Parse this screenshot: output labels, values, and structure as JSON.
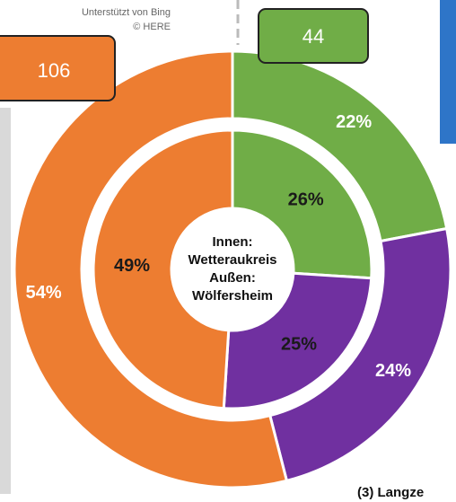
{
  "chart_data": {
    "type": "donut",
    "colors": [
      "#70ad47",
      "#7030a0",
      "#ed7d31"
    ],
    "rings": [
      {
        "values": [
          26,
          25,
          49
        ],
        "value_labels": [
          "26%",
          "25%",
          "49%"
        ]
      },
      {
        "values": [
          22,
          24,
          54
        ],
        "value_labels": [
          "22%",
          "24%",
          "54%"
        ]
      }
    ],
    "center_label": [
      "Innen:",
      "Wetteraukreis",
      "Außen:",
      "Wölfersheim"
    ],
    "callouts": [
      "106",
      "44"
    ],
    "attribution": [
      "Unterstützt von Bing",
      "© HERE"
    ],
    "caption": "(3) Langze"
  }
}
